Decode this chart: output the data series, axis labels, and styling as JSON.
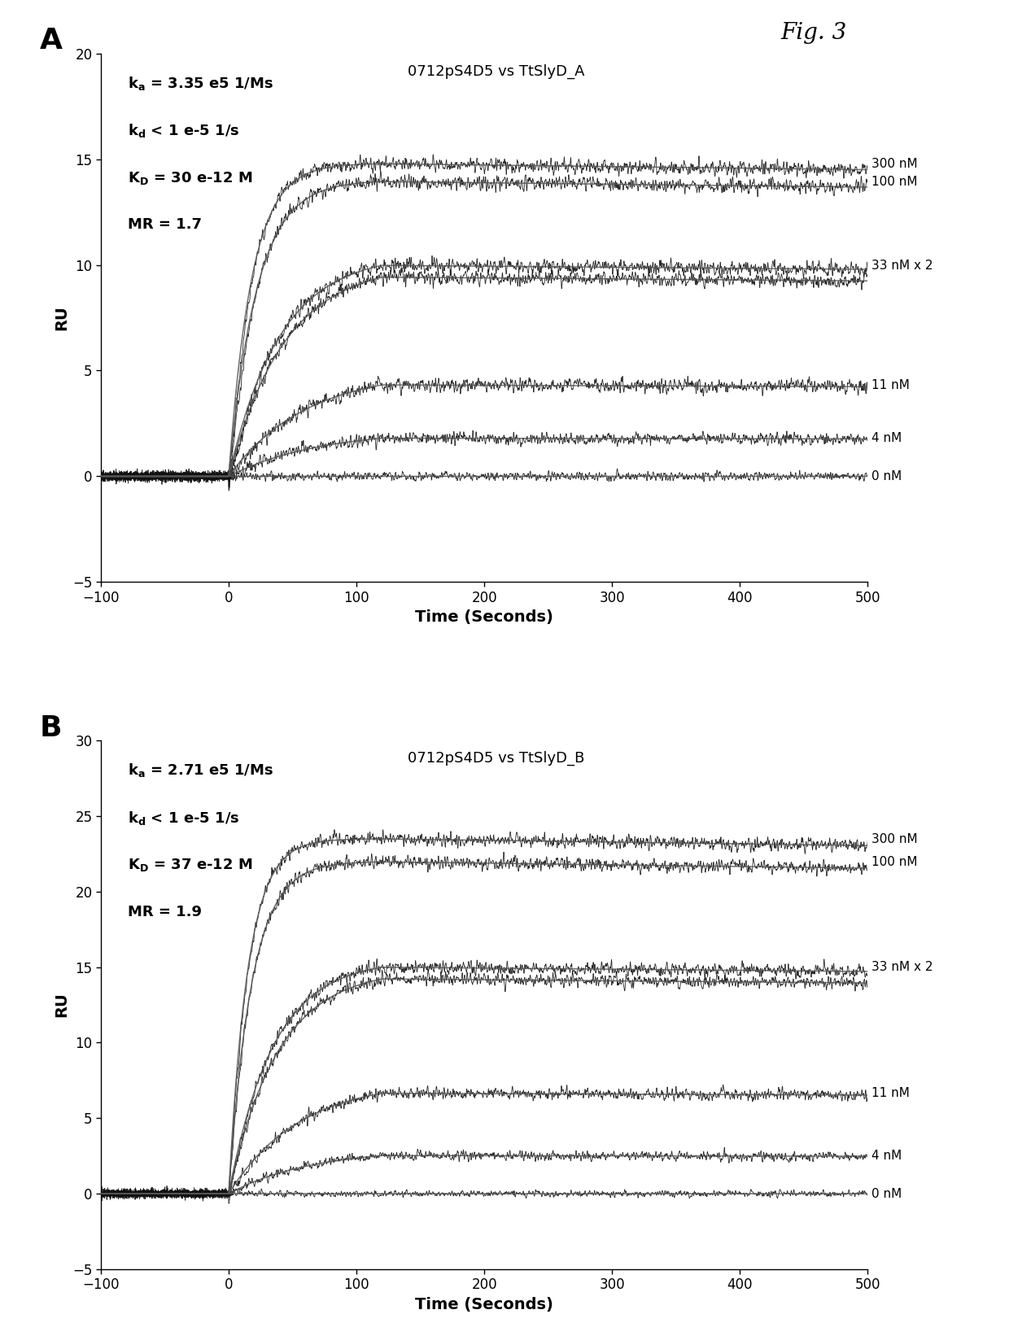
{
  "panel_A": {
    "label": "A",
    "subtitle": "0712pS4D5 vs TtSlyD_A",
    "annot_lines": [
      [
        "k",
        "a",
        " = 3.35 e5 1/Ms"
      ],
      [
        "k",
        "d",
        " < 1 e-5 1/s"
      ],
      [
        "K",
        "D",
        " = 30 e-12 M"
      ],
      [
        "MR = 1.7",
        "",
        ""
      ]
    ],
    "ylim": [
      -5,
      20
    ],
    "yticks": [
      -5,
      0,
      5,
      10,
      15,
      20
    ],
    "concentrations": [
      "300 nM",
      "100 nM",
      "33 nM x 2",
      "11 nM",
      "4 nM",
      "0 nM"
    ],
    "plateau_levels": [
      14.8,
      14.0,
      10.5,
      5.0,
      2.2,
      0.0
    ],
    "rise_taus": [
      18,
      22,
      40,
      60,
      70,
      999
    ],
    "noise_amp": [
      0.35,
      0.35,
      0.35,
      0.35,
      0.3,
      0.25
    ],
    "dip_amp": [
      -0.8,
      -0.6,
      -0.4,
      -0.2,
      -0.1,
      0.0
    ]
  },
  "panel_B": {
    "label": "B",
    "subtitle": "0712pS4D5 vs TtSlyD_B",
    "annot_lines": [
      [
        "k",
        "a",
        " = 2.71 e5 1/Ms"
      ],
      [
        "k",
        "d",
        " < 1 e-5 1/s"
      ],
      [
        "K",
        "D",
        " = 37 e-12 M"
      ],
      [
        "MR = 1.9",
        "",
        ""
      ]
    ],
    "ylim": [
      -5,
      30
    ],
    "yticks": [
      -5,
      0,
      5,
      10,
      15,
      20,
      25,
      30
    ],
    "concentrations": [
      "300 nM",
      "100 nM",
      "33 nM x 2",
      "11 nM",
      "4 nM",
      "0 nM"
    ],
    "plateau_levels": [
      23.5,
      22.0,
      15.5,
      7.5,
      3.0,
      0.0
    ],
    "rise_taus": [
      15,
      18,
      35,
      55,
      65,
      999
    ],
    "noise_amp": [
      0.45,
      0.45,
      0.45,
      0.4,
      0.35,
      0.25
    ],
    "dip_amp": [
      -0.5,
      -0.4,
      -0.3,
      -0.15,
      -0.1,
      0.0
    ]
  },
  "xlim": [
    -100,
    500
  ],
  "xticks": [
    -100,
    0,
    100,
    200,
    300,
    400,
    500
  ],
  "xlabel": "Time (Seconds)",
  "ylabel": "RU",
  "fig_label": "Fig. 3",
  "inject_time": 0,
  "dissoc_time": 120,
  "bg_color": "#ffffff"
}
